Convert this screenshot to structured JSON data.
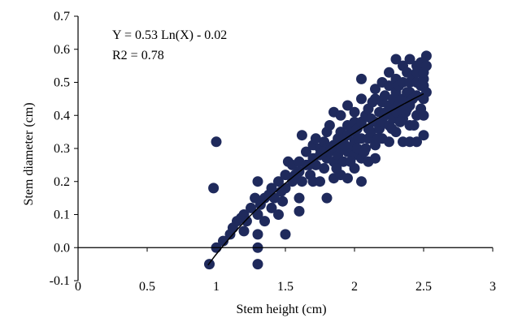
{
  "chart_data": {
    "type": "scatter",
    "title": "",
    "xlabel": "Stem height (cm)",
    "ylabel": "Stem diameter (cm)",
    "xlim": [
      0,
      3
    ],
    "ylim": [
      -0.1,
      0.7
    ],
    "x_ticks": [
      0,
      0.5,
      1,
      1.5,
      2,
      2.5,
      3
    ],
    "x_tick_labels": [
      "0",
      "0.5",
      "1",
      "1.5",
      "2",
      "2.5",
      "3"
    ],
    "y_ticks": [
      -0.1,
      0.0,
      0.1,
      0.2,
      0.3,
      0.4,
      0.5,
      0.6,
      0.7
    ],
    "y_tick_labels": [
      "-0.1",
      "0.0",
      "0.1",
      "0.2",
      "0.3",
      "0.4",
      "0.5",
      "0.6",
      "0.7"
    ],
    "grid": false,
    "legend": "none",
    "marker_color": "#1f2a5c",
    "line_color": "#000000",
    "annotations": [
      "Y = 0.53 Ln(X) - 0.02",
      "R2 = 0.78"
    ],
    "trendline": {
      "type": "logarithmic",
      "a": 0.53,
      "b": -0.02,
      "x_range": [
        0.94,
        2.5
      ]
    },
    "series": [
      {
        "points": [
          [
            0.95,
            -0.05
          ],
          [
            0.98,
            0.18
          ],
          [
            1.0,
            0.32
          ],
          [
            1.0,
            0.0
          ],
          [
            1.05,
            0.02
          ],
          [
            1.1,
            0.04
          ],
          [
            1.12,
            0.06
          ],
          [
            1.15,
            0.08
          ],
          [
            1.18,
            0.09
          ],
          [
            1.2,
            0.05
          ],
          [
            1.2,
            0.1
          ],
          [
            1.22,
            0.08
          ],
          [
            1.25,
            0.12
          ],
          [
            1.28,
            0.15
          ],
          [
            1.3,
            -0.05
          ],
          [
            1.3,
            0.0
          ],
          [
            1.3,
            0.04
          ],
          [
            1.3,
            0.1
          ],
          [
            1.3,
            0.2
          ],
          [
            1.32,
            0.13
          ],
          [
            1.35,
            0.15
          ],
          [
            1.35,
            0.08
          ],
          [
            1.38,
            0.16
          ],
          [
            1.4,
            0.12
          ],
          [
            1.4,
            0.18
          ],
          [
            1.42,
            0.15
          ],
          [
            1.45,
            0.2
          ],
          [
            1.45,
            0.1
          ],
          [
            1.48,
            0.14
          ],
          [
            1.5,
            0.04
          ],
          [
            1.5,
            0.18
          ],
          [
            1.5,
            0.22
          ],
          [
            1.52,
            0.26
          ],
          [
            1.55,
            0.2
          ],
          [
            1.55,
            0.25
          ],
          [
            1.58,
            0.21
          ],
          [
            1.6,
            0.11
          ],
          [
            1.6,
            0.15
          ],
          [
            1.6,
            0.23
          ],
          [
            1.6,
            0.26
          ],
          [
            1.62,
            0.34
          ],
          [
            1.62,
            0.2
          ],
          [
            1.65,
            0.25
          ],
          [
            1.65,
            0.29
          ],
          [
            1.68,
            0.22
          ],
          [
            1.7,
            0.2
          ],
          [
            1.7,
            0.27
          ],
          [
            1.7,
            0.31
          ],
          [
            1.72,
            0.25
          ],
          [
            1.72,
            0.33
          ],
          [
            1.75,
            0.2
          ],
          [
            1.75,
            0.28
          ],
          [
            1.75,
            0.3
          ],
          [
            1.78,
            0.24
          ],
          [
            1.78,
            0.32
          ],
          [
            1.8,
            0.15
          ],
          [
            1.8,
            0.27
          ],
          [
            1.8,
            0.3
          ],
          [
            1.8,
            0.35
          ],
          [
            1.82,
            0.29
          ],
          [
            1.82,
            0.37
          ],
          [
            1.85,
            0.21
          ],
          [
            1.85,
            0.26
          ],
          [
            1.85,
            0.31
          ],
          [
            1.85,
            0.41
          ],
          [
            1.88,
            0.28
          ],
          [
            1.88,
            0.33
          ],
          [
            1.9,
            0.22
          ],
          [
            1.9,
            0.3
          ],
          [
            1.9,
            0.35
          ],
          [
            1.9,
            0.4
          ],
          [
            1.92,
            0.26
          ],
          [
            1.92,
            0.33
          ],
          [
            1.95,
            0.21
          ],
          [
            1.95,
            0.29
          ],
          [
            1.95,
            0.34
          ],
          [
            1.95,
            0.37
          ],
          [
            1.95,
            0.43
          ],
          [
            1.98,
            0.3
          ],
          [
            1.98,
            0.36
          ],
          [
            2.0,
            0.24
          ],
          [
            2.0,
            0.28
          ],
          [
            2.0,
            0.32
          ],
          [
            2.0,
            0.35
          ],
          [
            2.0,
            0.38
          ],
          [
            2.0,
            0.41
          ],
          [
            2.02,
            0.3
          ],
          [
            2.02,
            0.36
          ],
          [
            2.05,
            0.2
          ],
          [
            2.05,
            0.27
          ],
          [
            2.05,
            0.33
          ],
          [
            2.05,
            0.38
          ],
          [
            2.05,
            0.45
          ],
          [
            2.05,
            0.51
          ],
          [
            2.08,
            0.3
          ],
          [
            2.08,
            0.4
          ],
          [
            2.1,
            0.26
          ],
          [
            2.1,
            0.33
          ],
          [
            2.1,
            0.36
          ],
          [
            2.1,
            0.42
          ],
          [
            2.12,
            0.35
          ],
          [
            2.12,
            0.39
          ],
          [
            2.15,
            0.27
          ],
          [
            2.15,
            0.31
          ],
          [
            2.15,
            0.38
          ],
          [
            2.15,
            0.45
          ],
          [
            2.15,
            0.48
          ],
          [
            2.18,
            0.36
          ],
          [
            2.18,
            0.41
          ],
          [
            2.2,
            0.33
          ],
          [
            2.2,
            0.38
          ],
          [
            2.2,
            0.44
          ],
          [
            2.2,
            0.5
          ],
          [
            2.22,
            0.4
          ],
          [
            2.22,
            0.46
          ],
          [
            2.25,
            0.32
          ],
          [
            2.25,
            0.37
          ],
          [
            2.25,
            0.43
          ],
          [
            2.25,
            0.49
          ],
          [
            2.25,
            0.53
          ],
          [
            2.28,
            0.39
          ],
          [
            2.28,
            0.45
          ],
          [
            2.3,
            0.35
          ],
          [
            2.3,
            0.41
          ],
          [
            2.3,
            0.47
          ],
          [
            2.3,
            0.51
          ],
          [
            2.3,
            0.57
          ],
          [
            2.32,
            0.43
          ],
          [
            2.32,
            0.49
          ],
          [
            2.35,
            0.32
          ],
          [
            2.35,
            0.39
          ],
          [
            2.35,
            0.45
          ],
          [
            2.35,
            0.5
          ],
          [
            2.35,
            0.55
          ],
          [
            2.38,
            0.42
          ],
          [
            2.38,
            0.47
          ],
          [
            2.38,
            0.53
          ],
          [
            2.4,
            0.32
          ],
          [
            2.4,
            0.37
          ],
          [
            2.4,
            0.43
          ],
          [
            2.4,
            0.47
          ],
          [
            2.4,
            0.5
          ],
          [
            2.4,
            0.57
          ],
          [
            2.42,
            0.45
          ],
          [
            2.42,
            0.52
          ],
          [
            2.45,
            0.32
          ],
          [
            2.45,
            0.4
          ],
          [
            2.45,
            0.46
          ],
          [
            2.45,
            0.5
          ],
          [
            2.45,
            0.53
          ],
          [
            2.45,
            0.55
          ],
          [
            2.48,
            0.42
          ],
          [
            2.48,
            0.49
          ],
          [
            2.48,
            0.56
          ],
          [
            2.5,
            0.34
          ],
          [
            2.5,
            0.4
          ],
          [
            2.5,
            0.45
          ],
          [
            2.5,
            0.49
          ],
          [
            2.5,
            0.51
          ],
          [
            2.5,
            0.53
          ],
          [
            2.52,
            0.47
          ],
          [
            2.52,
            0.55
          ],
          [
            2.52,
            0.58
          ],
          [
            1.87,
            0.24
          ],
          [
            1.97,
            0.26
          ],
          [
            2.07,
            0.29
          ],
          [
            2.17,
            0.33
          ],
          [
            2.27,
            0.36
          ],
          [
            2.37,
            0.41
          ],
          [
            1.77,
            0.29
          ],
          [
            1.67,
            0.25
          ],
          [
            1.57,
            0.22
          ],
          [
            1.47,
            0.17
          ],
          [
            2.13,
            0.44
          ],
          [
            2.23,
            0.41
          ],
          [
            2.33,
            0.38
          ],
          [
            2.43,
            0.37
          ],
          [
            2.03,
            0.33
          ],
          [
            1.93,
            0.31
          ],
          [
            1.83,
            0.3
          ]
        ]
      }
    ]
  }
}
